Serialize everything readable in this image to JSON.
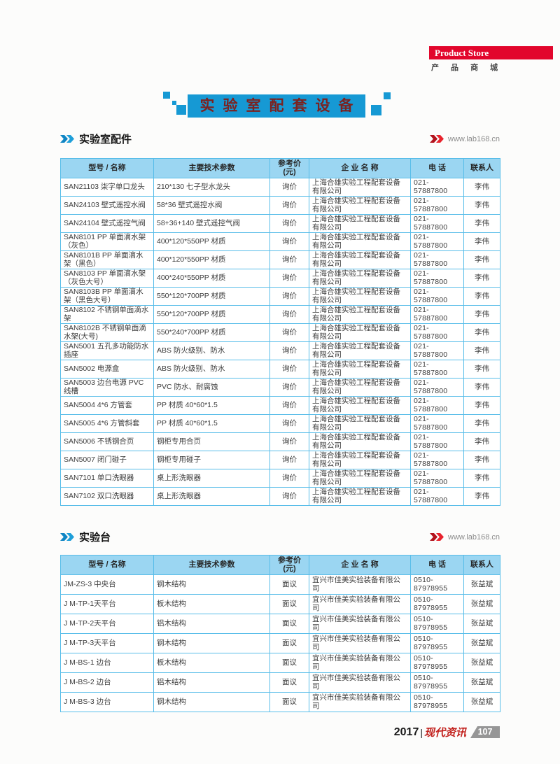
{
  "product_store": {
    "en": "Product Store",
    "zh": "产 品 商 城"
  },
  "banner_title": "实验室配套设备",
  "footer": {
    "year": "2017",
    "separator": "|",
    "brand": "现代资讯",
    "page_number": "107"
  },
  "sections": [
    {
      "title": "实验室配件",
      "website": "www.lab168.cn",
      "table": {
        "headers": [
          "型号 / 名称",
          "主要技术参数",
          "参考价(元)",
          "企 业 名 称",
          "电  话",
          "联系人"
        ],
        "rows": [
          [
            "SAN21103 柒字单口龙头",
            "210*130 七子型水龙头",
            "询价",
            "上海合雄实验工程配套设备有限公司",
            "021-57887800",
            "李伟"
          ],
          [
            "SAN24103 壁式遥控水阀",
            "58*36 壁式遥控水阀",
            "询价",
            "上海合雄实验工程配套设备有限公司",
            "021-57887800",
            "李伟"
          ],
          [
            "SAN24104 壁式遥控气阀",
            "58+36+140 壁式遥控气阀",
            "询价",
            "上海合雄实验工程配套设备有限公司",
            "021-57887800",
            "李伟"
          ],
          [
            "SAN8101 PP 单面滴水架（灰色）",
            "400*120*550PP 材质",
            "询价",
            "上海合雄实验工程配套设备有限公司",
            "021-57887800",
            "李伟"
          ],
          [
            "SAN8101B PP 单面滴水架（黑色）",
            "400*120*550PP 材质",
            "询价",
            "上海合雄实验工程配套设备有限公司",
            "021-57887800",
            "李伟"
          ],
          [
            "SAN8103 PP 单面滴水架（灰色大号）",
            "400*240*550PP 材质",
            "询价",
            "上海合雄实验工程配套设备有限公司",
            "021-57887800",
            "李伟"
          ],
          [
            "SAN8103B PP 单面滴水架（黑色大号）",
            "550*120*700PP 材质",
            "询价",
            "上海合雄实验工程配套设备有限公司",
            "021-57887800",
            "李伟"
          ],
          [
            "SAN8102 不锈钢单面滴水架",
            "550*120*700PP 材质",
            "询价",
            "上海合雄实验工程配套设备有限公司",
            "021-57887800",
            "李伟"
          ],
          [
            "SAN8102B 不锈钢单面滴水架(大号)",
            "550*240*700PP 材质",
            "询价",
            "上海合雄实验工程配套设备有限公司",
            "021-57887800",
            "李伟"
          ],
          [
            "SAN5001 五孔多功能防水插座",
            "ABS 防火级别、防水",
            "询价",
            "上海合雄实验工程配套设备有限公司",
            "021-57887800",
            "李伟"
          ],
          [
            "SAN5002 电源盒",
            "ABS 防火级别、防水",
            "询价",
            "上海合雄实验工程配套设备有限公司",
            "021-57887800",
            "李伟"
          ],
          [
            "SAN5003 边台电源 PVC 线槽",
            "PVC 防水、耐腐蚀",
            "询价",
            "上海合雄实验工程配套设备有限公司",
            "021-57887800",
            "李伟"
          ],
          [
            "SAN5004 4*6 方管套",
            "PP 材质 40*60*1.5",
            "询价",
            "上海合雄实验工程配套设备有限公司",
            "021-57887800",
            "李伟"
          ],
          [
            "SAN5005 4*6 方管斜套",
            "PP 材质 40*60*1.5",
            "询价",
            "上海合雄实验工程配套设备有限公司",
            "021-57887800",
            "李伟"
          ],
          [
            "SAN5006 不锈钢合页",
            "钢柜专用合页",
            "询价",
            "上海合雄实验工程配套设备有限公司",
            "021-57887800",
            "李伟"
          ],
          [
            "SAN5007 闭门碰子",
            "钢柜专用碰子",
            "询价",
            "上海合雄实验工程配套设备有限公司",
            "021-57887800",
            "李伟"
          ],
          [
            "SAN7101 单口洗眼器",
            "桌上形洗眼器",
            "询价",
            "上海合雄实验工程配套设备有限公司",
            "021-57887800",
            "李伟"
          ],
          [
            "SAN7102 双口洗眼器",
            "桌上形洗眼器",
            "询价",
            "上海合雄实验工程配套设备有限公司",
            "021-57887800",
            "李伟"
          ]
        ]
      }
    },
    {
      "title": "实验台",
      "website": "www.lab168.cn",
      "table": {
        "headers": [
          "型号 / 名称",
          "主要技术参数",
          "参考价(元)",
          "企 业 名 称",
          "电  话",
          "联系人"
        ],
        "rows": [
          [
            "JM-ZS-3 中央台",
            "钢木结构",
            "面议",
            "宜兴市佳美实验装备有限公司",
            "0510-87978955",
            "张益斌"
          ],
          [
            "J M-TP-1天平台",
            "板木结构",
            "面议",
            "宜兴市佳美实验装备有限公司",
            "0510-87978955",
            "张益斌"
          ],
          [
            "J M-TP-2天平台",
            "铝木结构",
            "面议",
            "宜兴市佳美实验装备有限公司",
            "0510-87978955",
            "张益斌"
          ],
          [
            "J M-TP-3天平台",
            "钢木结构",
            "面议",
            "宜兴市佳美实验装备有限公司",
            "0510-87978955",
            "张益斌"
          ],
          [
            "J M-BS-1 边台",
            "板木结构",
            "面议",
            "宜兴市佳美实验装备有限公司",
            "0510-87978955",
            "张益斌"
          ],
          [
            "J M-BS-2 边台",
            "铝木结构",
            "面议",
            "宜兴市佳美实验装备有限公司",
            "0510-87978955",
            "张益斌"
          ],
          [
            "J M-BS-3 边台",
            "钢木结构",
            "面议",
            "宜兴市佳美实验装备有限公司",
            "0510-87978955",
            "张益斌"
          ]
        ]
      }
    }
  ]
}
